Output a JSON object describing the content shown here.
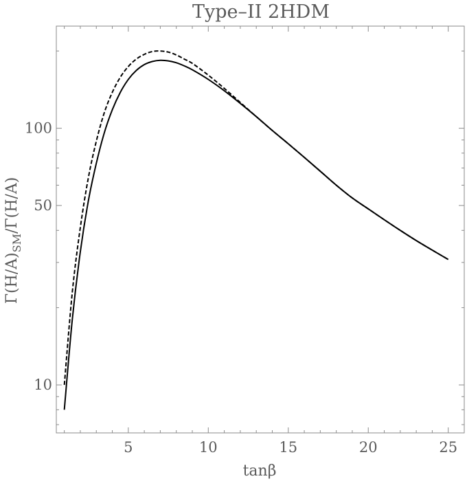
{
  "chart_data": {
    "type": "line",
    "title": "Type–II 2HDM",
    "xlabel": "tanβ",
    "ylabel": "Γ(H/A)SM/Γ(H/A)",
    "ylabel_parts": {
      "main": "Γ(H/A)",
      "sub": "SM",
      "tail": "/Γ(H/A)"
    },
    "y_scale": "log",
    "xlim": [
      0.5,
      26
    ],
    "ylim": [
      6.5,
      250
    ],
    "x_ticks": [
      5,
      10,
      15,
      20,
      25
    ],
    "x_tick_labels": [
      "5",
      "10",
      "15",
      "20",
      "25"
    ],
    "y_ticks": [
      10,
      50,
      100
    ],
    "y_tick_labels": [
      "10",
      "50",
      "100"
    ],
    "grid": false,
    "legend": "none",
    "series": [
      {
        "style": "solid",
        "color": "#000000",
        "x": [
          1,
          1.5,
          2,
          2.5,
          3,
          3.5,
          4,
          4.5,
          5,
          5.5,
          6,
          6.5,
          7,
          7.5,
          8,
          8.5,
          9,
          10,
          11,
          12,
          13,
          14,
          15,
          16,
          17,
          18,
          19,
          20,
          21,
          22,
          23,
          24,
          25
        ],
        "y": [
          8.0,
          18.0,
          33.0,
          52.0,
          73.0,
          96.0,
          118,
          138,
          155,
          168,
          177,
          182,
          184,
          183,
          180,
          175,
          169,
          155,
          140,
          125,
          111,
          98,
          87,
          77,
          68,
          60,
          53.5,
          48.5,
          44,
          40,
          36.5,
          33.5,
          30.8
        ]
      },
      {
        "style": "dashed",
        "color": "#000000",
        "x": [
          1,
          1.5,
          2,
          2.5,
          3,
          3.5,
          4,
          4.5,
          5,
          5.5,
          6,
          6.5,
          7,
          7.5,
          8,
          8.5,
          9,
          10,
          11,
          12,
          13,
          14,
          15,
          16,
          17,
          18,
          19,
          20,
          21,
          22,
          23,
          24,
          25
        ],
        "y": [
          10.0,
          23.0,
          41.0,
          64.0,
          89.0,
          115,
          138,
          158,
          174,
          186,
          194,
          199,
          200,
          198,
          193,
          186,
          179,
          161,
          143,
          126,
          111,
          98,
          87,
          77,
          68,
          60,
          53.5,
          48.5,
          44,
          40,
          36.5,
          33.5,
          30.8
        ]
      }
    ]
  }
}
